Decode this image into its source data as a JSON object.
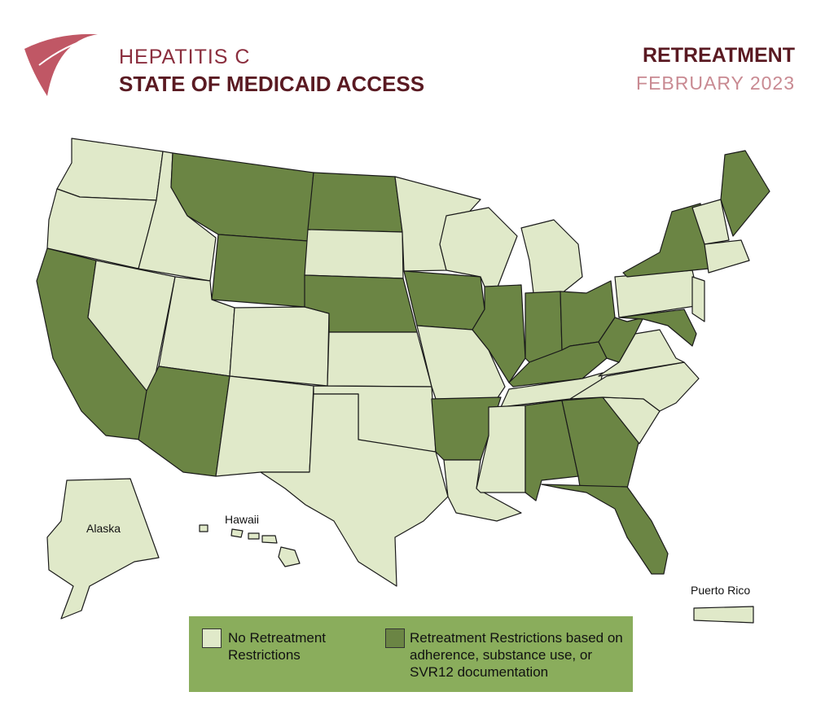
{
  "header": {
    "subtitle": "HEPATITIS C",
    "title": "STATE OF MEDICAID ACCESS",
    "topic": "RETREATMENT",
    "date": "FEBRUARY 2023"
  },
  "map": {
    "labels": [
      "Alaska",
      "Hawaii",
      "Puerto Rico"
    ]
  },
  "legend": {
    "items": [
      {
        "label": "No Retreatment Restrictions",
        "color": "#e0e9c9"
      },
      {
        "label": "Retreatment Restrictions based on adherence, substance use, or SVR12 documentation",
        "color": "#6b8544"
      }
    ]
  }
}
